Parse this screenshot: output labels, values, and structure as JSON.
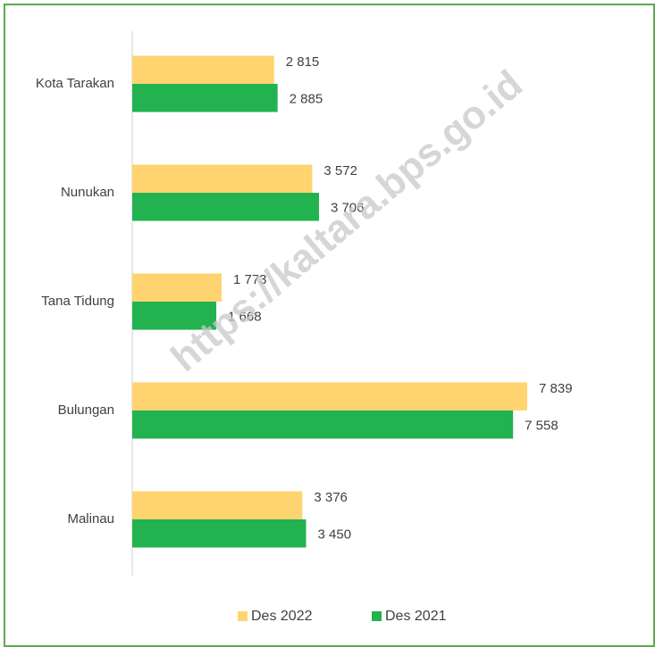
{
  "chart_data": {
    "type": "barh",
    "watermark": "https://kaltara.bps.go.id",
    "categories": [
      "Kota Tarakan",
      "Nunukan",
      "Tana Tidung",
      "Bulungan",
      "Malinau"
    ],
    "series": [
      {
        "name": "Des 2022",
        "color": "#ffd470",
        "values": [
          2815,
          3572,
          1773,
          7839,
          3376
        ],
        "value_labels": [
          "2 815",
          "3 572",
          "1 773",
          "7 839",
          "3 376"
        ]
      },
      {
        "name": "Des 2021",
        "color": "#22b24f",
        "values": [
          2885,
          3706,
          1668,
          7558,
          3450
        ],
        "value_labels": [
          "2 885",
          "3 706",
          "1 668",
          "7 558",
          "3 450"
        ]
      }
    ],
    "xlim": [
      0,
      9000
    ],
    "legend": "bottom"
  }
}
